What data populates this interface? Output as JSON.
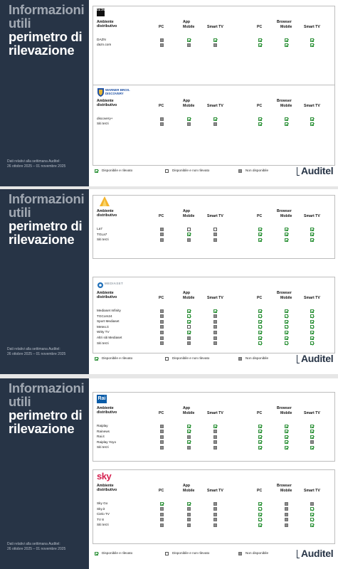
{
  "side": {
    "title_line1": "Informazioni",
    "title_line2": "utili",
    "subtitle_line1": "perimetro di",
    "subtitle_line2": "rilevazione"
  },
  "footer": {
    "line1": "Dati relativi alla settimana Auditel:",
    "line2": "26 ottobre 2025 – 01 novembre 2025"
  },
  "headers": {
    "ambiente_1": "Ambiente",
    "ambiente_2": "distributivo",
    "app": "App",
    "browser": "Browser",
    "pc": "PC",
    "mobile": "Mobile",
    "smarttv": "Smart TV"
  },
  "legend": {
    "green": "Disponibile e rilevato",
    "white": "Disponibile e non rilevato",
    "grey": "Non disponibile"
  },
  "brand": "Auditel",
  "colors": {
    "sidebar": "#273446",
    "check": "#2f9a3a",
    "grey": "#8c8c8c"
  },
  "panels": [
    {
      "slide": 0,
      "logo": "dazn-logo",
      "logo_text": "DA ZN",
      "rows": [
        {
          "label": "DAZN",
          "cells": [
            "grey",
            "green",
            "green",
            "green",
            "green",
            "green"
          ]
        },
        {
          "label": "dazn.com",
          "cells": [
            "grey",
            "grey",
            "grey",
            "green",
            "green",
            "green"
          ]
        }
      ]
    },
    {
      "slide": 0,
      "logo": "wbd-logo",
      "logo_text": "WARNER BROS. DISCOVERY",
      "rows": [
        {
          "label": "discovery+",
          "cells": [
            "grey",
            "green",
            "green",
            "green",
            "green",
            "green"
          ]
        },
        {
          "label": "Siti terzi",
          "cells": [
            "grey",
            "grey",
            "grey",
            "green",
            "green",
            "green"
          ]
        }
      ]
    },
    {
      "slide": 1,
      "logo": "la7-logo",
      "logo_text": "",
      "rows": [
        {
          "label": "La7",
          "cells": [
            "grey",
            "white",
            "white",
            "green",
            "green",
            "green"
          ]
        },
        {
          "label": "TGLa7",
          "cells": [
            "grey",
            "green",
            "grey",
            "green",
            "green",
            "green"
          ]
        },
        {
          "label": "Siti terzi",
          "cells": [
            "grey",
            "grey",
            "grey",
            "green",
            "green",
            "green"
          ]
        }
      ]
    },
    {
      "slide": 1,
      "logo": "mediaset-logo",
      "logo_text": "MEDIASET",
      "rows": [
        {
          "label": "Mediaset Infinity",
          "cells": [
            "grey",
            "green",
            "green",
            "green",
            "green",
            "green"
          ]
        },
        {
          "label": "TGCom24",
          "cells": [
            "grey",
            "green",
            "grey",
            "green",
            "green",
            "green"
          ]
        },
        {
          "label": "Sport Mediaset",
          "cells": [
            "grey",
            "green",
            "grey",
            "green",
            "green",
            "green"
          ]
        },
        {
          "label": "Meteo.it",
          "cells": [
            "grey",
            "white",
            "grey",
            "green",
            "green",
            "green"
          ]
        },
        {
          "label": "Witty TV",
          "cells": [
            "grey",
            "green",
            "grey",
            "green",
            "green",
            "green"
          ]
        },
        {
          "label": "Altri siti Mediaset",
          "cells": [
            "grey",
            "grey",
            "grey",
            "green",
            "green",
            "green"
          ]
        },
        {
          "label": "Siti terzi",
          "cells": [
            "grey",
            "grey",
            "grey",
            "green",
            "green",
            "green"
          ]
        }
      ]
    },
    {
      "slide": 2,
      "logo": "rai-logo",
      "logo_text": "Rai",
      "rows": [
        {
          "label": "Raiplay",
          "cells": [
            "grey",
            "green",
            "green",
            "green",
            "green",
            "green"
          ]
        },
        {
          "label": "Rainews",
          "cells": [
            "grey",
            "green",
            "grey",
            "green",
            "green",
            "green"
          ]
        },
        {
          "label": "Rai.it",
          "cells": [
            "grey",
            "grey",
            "grey",
            "green",
            "green",
            "green"
          ]
        },
        {
          "label": "Raiplay Yoyo",
          "cells": [
            "grey",
            "green",
            "grey",
            "green",
            "green",
            "grey"
          ]
        },
        {
          "label": "Siti terzi",
          "cells": [
            "grey",
            "grey",
            "grey",
            "green",
            "green",
            "green"
          ]
        }
      ]
    },
    {
      "slide": 2,
      "logo": "sky-logo",
      "logo_text": "sky",
      "rows": [
        {
          "label": "Sky Go",
          "cells": [
            "green",
            "green",
            "grey",
            "green",
            "grey",
            "grey"
          ]
        },
        {
          "label": "Sky.it",
          "cells": [
            "grey",
            "grey",
            "grey",
            "green",
            "grey",
            "green"
          ]
        },
        {
          "label": "Cielo TV",
          "cells": [
            "grey",
            "grey",
            "grey",
            "green",
            "grey",
            "green"
          ]
        },
        {
          "label": "TV 8",
          "cells": [
            "grey",
            "grey",
            "grey",
            "green",
            "grey",
            "green"
          ]
        },
        {
          "label": "Siti terzi",
          "cells": [
            "grey",
            "grey",
            "grey",
            "green",
            "grey",
            "green"
          ]
        }
      ]
    }
  ]
}
